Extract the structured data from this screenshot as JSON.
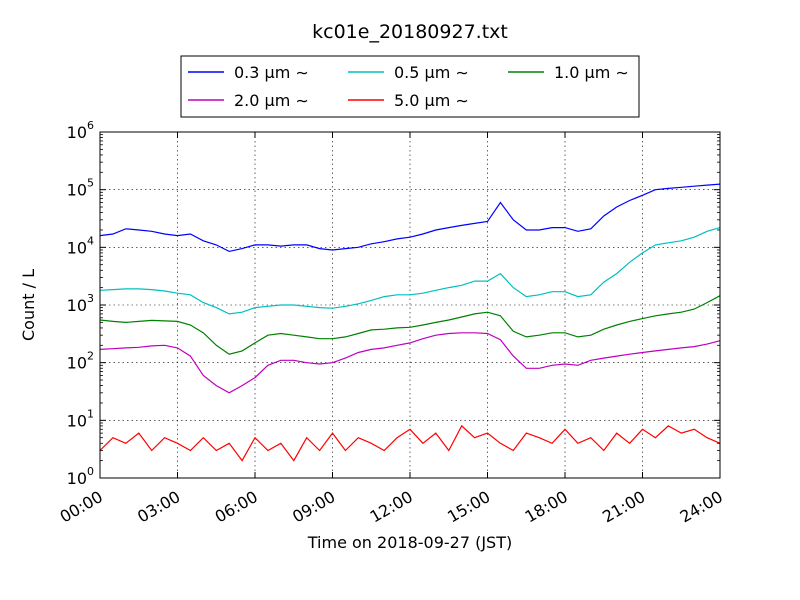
{
  "chart_data": {
    "type": "line",
    "title": "kc01e_20180927.txt",
    "xlabel": "Time on 2018-09-27 (JST)",
    "ylabel": "Count / L",
    "yscale": "log",
    "ylim": [
      1,
      1000000
    ],
    "xlim": [
      "00:00",
      "24:00"
    ],
    "x_ticks": [
      "00:00",
      "03:00",
      "06:00",
      "09:00",
      "12:00",
      "15:00",
      "18:00",
      "21:00",
      "24:00"
    ],
    "y_ticks": [
      {
        "base": "10",
        "exp": "0"
      },
      {
        "base": "10",
        "exp": "1"
      },
      {
        "base": "10",
        "exp": "2"
      },
      {
        "base": "10",
        "exp": "3"
      },
      {
        "base": "10",
        "exp": "4"
      },
      {
        "base": "10",
        "exp": "5"
      },
      {
        "base": "10",
        "exp": "6"
      }
    ],
    "grid": true,
    "legend_position": "top-center",
    "hours": [
      0,
      0.5,
      1,
      1.5,
      2,
      2.5,
      3,
      3.5,
      4,
      4.5,
      5,
      5.5,
      6,
      6.5,
      7,
      7.5,
      8,
      8.5,
      9,
      9.5,
      10,
      10.5,
      11,
      11.5,
      12,
      12.5,
      13,
      13.5,
      14,
      14.5,
      15,
      15.5,
      16,
      16.5,
      17,
      17.5,
      18,
      18.5,
      19,
      19.5,
      20,
      20.5,
      21,
      21.5,
      22,
      22.5,
      23,
      23.5,
      24
    ],
    "series": [
      {
        "name": "0.3 μm ∼",
        "color": "#0000ff",
        "values": [
          16000,
          17000,
          21000,
          20000,
          19000,
          17000,
          16000,
          17000,
          13000,
          11000,
          8500,
          9500,
          11000,
          11000,
          10500,
          11000,
          11000,
          9500,
          9000,
          9500,
          10000,
          11500,
          12500,
          14000,
          15000,
          17000,
          20000,
          22000,
          24000,
          26000,
          28000,
          60000,
          30000,
          20000,
          20000,
          22000,
          22000,
          19000,
          21000,
          35000,
          50000,
          65000,
          80000,
          100000,
          105000,
          110000,
          115000,
          120000,
          125000
        ]
      },
      {
        "name": "0.5 μm ∼",
        "color": "#00bfbf",
        "values": [
          1800,
          1850,
          1900,
          1900,
          1850,
          1750,
          1600,
          1500,
          1100,
          900,
          700,
          750,
          900,
          950,
          1000,
          1000,
          950,
          900,
          880,
          950,
          1050,
          1200,
          1400,
          1500,
          1500,
          1600,
          1800,
          2000,
          2200,
          2600,
          2600,
          3500,
          2000,
          1400,
          1500,
          1700,
          1700,
          1400,
          1500,
          2500,
          3500,
          5500,
          8000,
          11000,
          12000,
          13000,
          15000,
          19000,
          22000
        ]
      },
      {
        "name": "1.0 μm ∼",
        "color": "#008000",
        "values": [
          550,
          520,
          500,
          520,
          540,
          530,
          520,
          450,
          330,
          200,
          140,
          160,
          220,
          300,
          320,
          300,
          280,
          260,
          260,
          280,
          320,
          370,
          380,
          400,
          410,
          450,
          500,
          550,
          620,
          700,
          750,
          650,
          350,
          280,
          300,
          330,
          330,
          280,
          300,
          380,
          450,
          520,
          580,
          650,
          700,
          750,
          850,
          1100,
          1450
        ]
      },
      {
        "name": "2.0 μm ∼",
        "color": "#bf00bf",
        "values": [
          170,
          175,
          180,
          185,
          195,
          200,
          180,
          130,
          60,
          40,
          30,
          40,
          55,
          90,
          110,
          110,
          100,
          95,
          100,
          120,
          150,
          170,
          180,
          200,
          220,
          260,
          300,
          320,
          330,
          330,
          320,
          250,
          130,
          80,
          80,
          90,
          95,
          90,
          110,
          120,
          130,
          140,
          150,
          160,
          170,
          180,
          190,
          210,
          240
        ]
      },
      {
        "name": "5.0 μm ∼",
        "color": "#ff0000",
        "values": [
          3,
          5,
          4,
          6,
          3,
          5,
          4,
          3,
          5,
          3,
          4,
          2,
          5,
          3,
          4,
          2,
          5,
          3,
          6,
          3,
          5,
          4,
          3,
          5,
          7,
          4,
          6,
          3,
          8,
          5,
          6,
          4,
          3,
          6,
          5,
          4,
          7,
          4,
          5,
          3,
          6,
          4,
          7,
          5,
          8,
          6,
          7,
          5,
          4
        ]
      }
    ]
  }
}
